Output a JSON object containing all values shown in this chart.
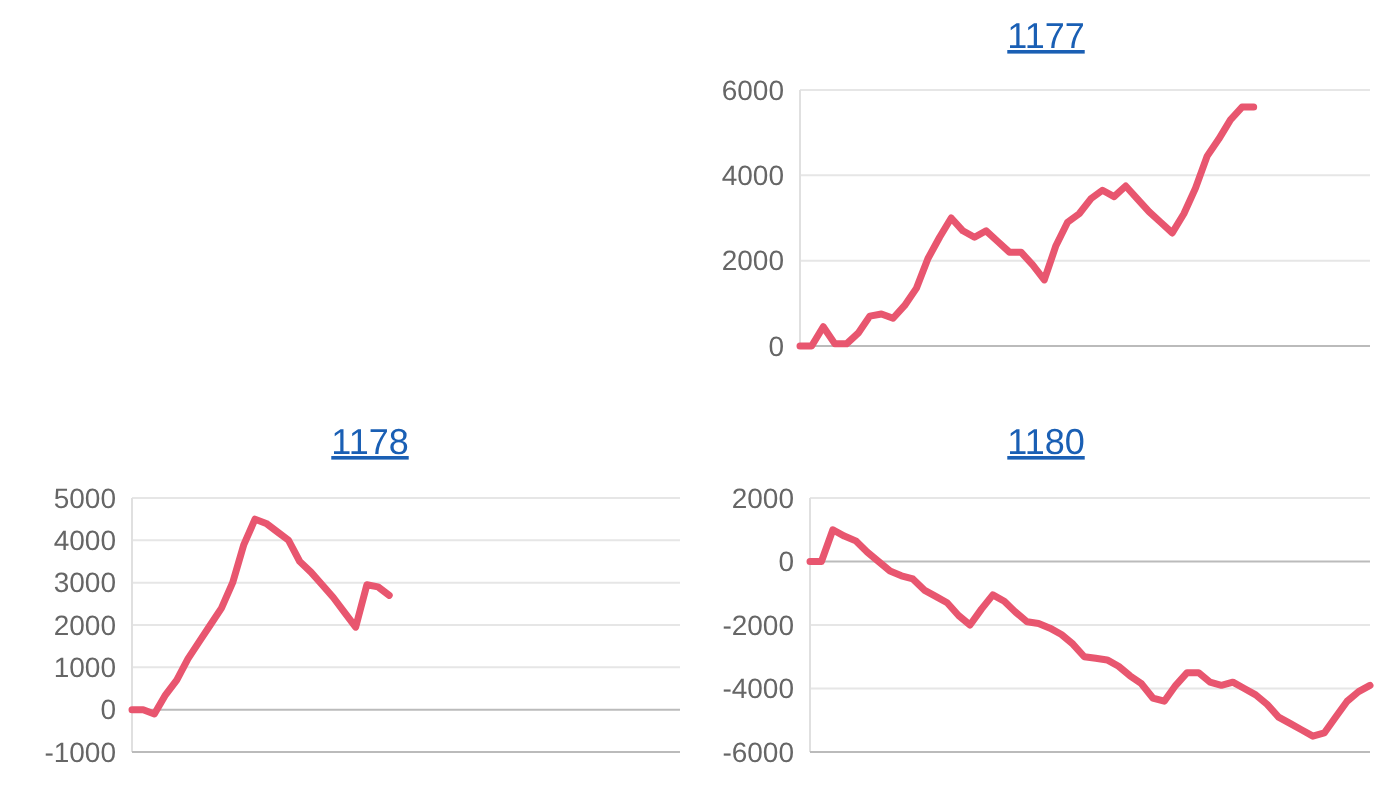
{
  "chart_data": [
    {
      "type": "line",
      "title": "1177",
      "categories": [
        null,
        null,
        null,
        null,
        null,
        null,
        null,
        null,
        null,
        null,
        null,
        null,
        null,
        null,
        null,
        null,
        null,
        null,
        null,
        null,
        null,
        null,
        null,
        null,
        null,
        null,
        null,
        null,
        null,
        null,
        null,
        null,
        null,
        null,
        null,
        null,
        null,
        null,
        null,
        null,
        null,
        null,
        null,
        null,
        null,
        null,
        null,
        null,
        null,
        null
      ],
      "series": [
        {
          "color": "#e8566f",
          "values": [
            0,
            0,
            450,
            50,
            50,
            300,
            700,
            750,
            650,
            950,
            1350,
            2050,
            2550,
            3000,
            2700,
            2550,
            2700,
            2450,
            2200,
            2200,
            1900,
            1550,
            2350,
            2900,
            3100,
            3450,
            3650,
            3500,
            3750,
            3450,
            3150,
            2900,
            2650,
            3100,
            3700,
            4450,
            4850,
            5300,
            5600,
            5600,
            null,
            null,
            null,
            null,
            null,
            null,
            null,
            null,
            null,
            null
          ]
        }
      ],
      "ylim": [
        0,
        6000
      ],
      "yticks": [
        0,
        2000,
        4000,
        6000
      ],
      "grid": "y",
      "tick_labels": "y",
      "marker": "none",
      "line_style": "solid"
    },
    {
      "type": "line",
      "title": "1178",
      "categories": [
        null,
        null,
        null,
        null,
        null,
        null,
        null,
        null,
        null,
        null,
        null,
        null,
        null,
        null,
        null,
        null,
        null,
        null,
        null,
        null,
        null,
        null,
        null,
        null,
        null,
        null,
        null,
        null,
        null,
        null,
        null,
        null,
        null,
        null,
        null,
        null,
        null,
        null,
        null,
        null,
        null,
        null,
        null,
        null,
        null,
        null,
        null,
        null,
        null,
        null
      ],
      "series": [
        {
          "color": "#e8566f",
          "values": [
            0,
            0,
            -100,
            350,
            700,
            1200,
            1600,
            2000,
            2400,
            3000,
            3900,
            4500,
            4400,
            4200,
            4000,
            3500,
            3250,
            2950,
            2650,
            2300,
            1950,
            2950,
            2900,
            2700,
            null,
            null,
            null,
            null,
            null,
            null,
            null,
            null,
            null,
            null,
            null,
            null,
            null,
            null,
            null,
            null,
            null,
            null,
            null,
            null,
            null,
            null,
            null,
            null,
            null,
            null
          ]
        }
      ],
      "ylim": [
        -1000,
        5000
      ],
      "yticks": [
        -1000,
        0,
        1000,
        2000,
        3000,
        4000,
        5000
      ],
      "grid": "y",
      "tick_labels": "y",
      "marker": "none",
      "line_style": "solid"
    },
    {
      "type": "line",
      "title": "1180",
      "categories": [
        null,
        null,
        null,
        null,
        null,
        null,
        null,
        null,
        null,
        null,
        null,
        null,
        null,
        null,
        null,
        null,
        null,
        null,
        null,
        null,
        null,
        null,
        null,
        null,
        null,
        null,
        null,
        null,
        null,
        null,
        null,
        null,
        null,
        null,
        null,
        null,
        null,
        null,
        null,
        null,
        null,
        null,
        null,
        null,
        null,
        null,
        null,
        null,
        null,
        null
      ],
      "series": [
        {
          "color": "#e8566f",
          "values": [
            0,
            0,
            1000,
            800,
            650,
            300,
            0,
            -300,
            -450,
            -550,
            -900,
            -1100,
            -1300,
            -1700,
            -2000,
            -1500,
            -1050,
            -1250,
            -1600,
            -1900,
            -1950,
            -2100,
            -2300,
            -2600,
            -3000,
            -3050,
            -3100,
            -3300,
            -3600,
            -3850,
            -4300,
            -4400,
            -3900,
            -3500,
            -3500,
            -3800,
            -3900,
            -3800,
            -4000,
            -4200,
            -4500,
            -4900,
            -5100,
            -5300,
            -5500,
            -5400,
            -4900,
            -4400,
            -4100,
            -3900
          ]
        }
      ],
      "ylim": [
        -6000,
        2000
      ],
      "yticks": [
        -6000,
        -4000,
        -2000,
        0,
        2000
      ],
      "grid": "y",
      "tick_labels": "y",
      "marker": "none",
      "line_style": "solid"
    }
  ]
}
